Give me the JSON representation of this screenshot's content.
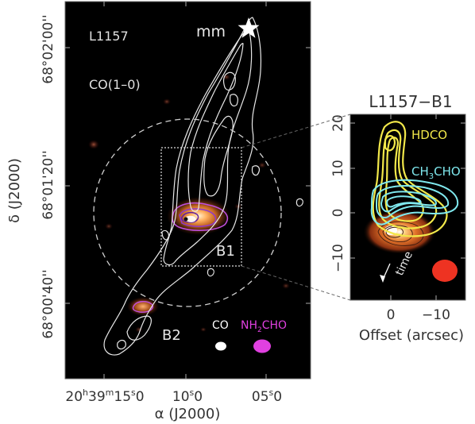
{
  "chart_data": [
    {
      "type": "map",
      "title": "",
      "panel_labels": {
        "source": "L1157",
        "tracer": "CO(1–0)",
        "protostar": "mm",
        "b1": "B1",
        "b2": "B2"
      },
      "legend": {
        "co": "CO",
        "nh2cho_main": "NH",
        "nh2cho_sub": "2",
        "nh2cho_end": "CHO"
      },
      "xlabel_main": "α (J2000)",
      "ylabel_main": "δ (J2000)",
      "x_ticks": [
        {
          "h": "20",
          "hu": "h",
          "m": "39",
          "mu": "m",
          "s": "15",
          "su": "s",
          "f": "0"
        },
        {
          "s": "10",
          "su": "s",
          "f": "0"
        },
        {
          "s": "05",
          "su": "s",
          "f": "0"
        }
      ],
      "y_ticks": [
        "68°02'00''",
        "68°01'20''",
        "68°00'40''"
      ],
      "colors": {
        "co_contour": "#e8e8e8",
        "nh2cho": "#e040e0",
        "background": "#000000"
      }
    },
    {
      "type": "map",
      "title": "L1157−B1",
      "labels": {
        "hdco": "HDCO",
        "ch3cho_a": "CH",
        "ch3cho_sub": "3",
        "ch3cho_b": "CHO",
        "time": "time"
      },
      "xlabel": "Offset (arcsec)",
      "x_ticks": [
        "0",
        "−10"
      ],
      "y_ticks": [
        "20",
        "10",
        "0",
        "−10"
      ],
      "colors": {
        "hdco": "#f2e84a",
        "ch3cho": "#7fe8ee",
        "beam": "#ee3322"
      }
    }
  ]
}
